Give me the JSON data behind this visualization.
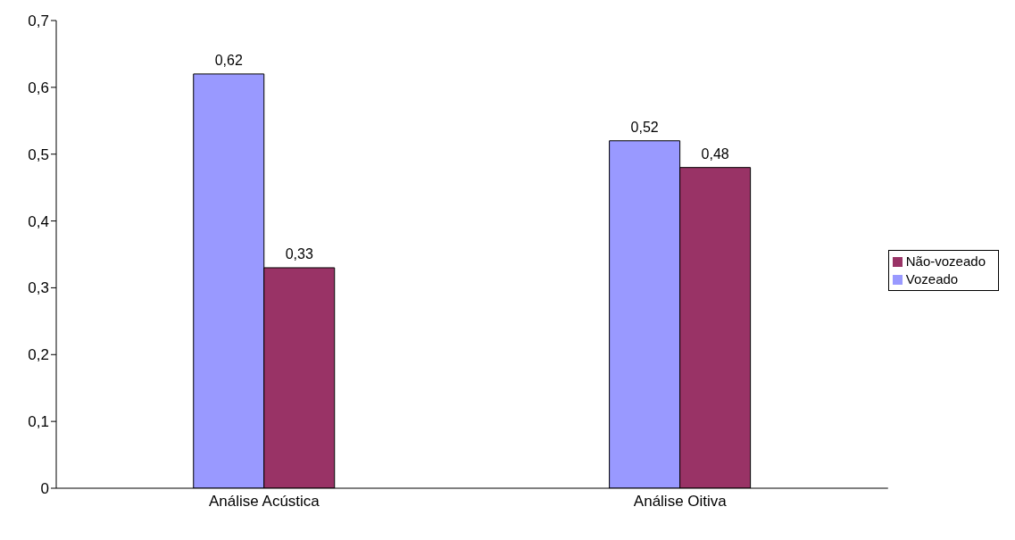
{
  "chart_data": {
    "type": "bar",
    "categories": [
      "Análise Acústica",
      "Análise Oitiva"
    ],
    "series": [
      {
        "name": "Vozeado",
        "color": "#9999ff",
        "values": [
          0.62,
          0.52
        ],
        "value_labels": [
          "0,62",
          "0,52"
        ]
      },
      {
        "name": "Não-vozeado",
        "color": "#993366",
        "values": [
          0.33,
          0.48
        ],
        "value_labels": [
          "0,33",
          "0,48"
        ]
      }
    ],
    "ylim": [
      0,
      0.7
    ],
    "yticks": [
      0,
      {
        "value": 0.1,
        "label": "0,1"
      },
      {
        "value": 0.2,
        "label": "0,2"
      },
      {
        "value": 0.3,
        "label": "0,3"
      },
      {
        "value": 0.4,
        "label": "0,4"
      },
      {
        "value": 0.5,
        "label": "0,5"
      },
      {
        "value": 0.6,
        "label": "0,6"
      },
      {
        "value": 0.7,
        "label": "0,7"
      }
    ],
    "grid": false,
    "legend": "right"
  }
}
